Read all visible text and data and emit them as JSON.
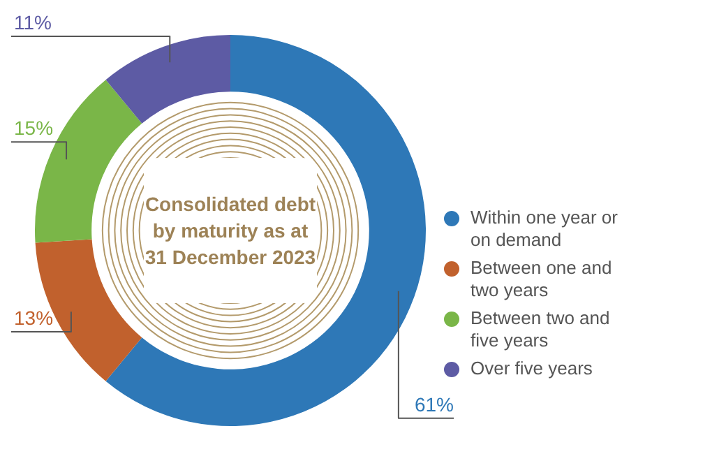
{
  "chart_data": {
    "type": "donut",
    "title": "Consolidated debt by maturity as at 31 December 2023",
    "categories": [
      "Within one year or on demand",
      "Between one and two years",
      "Between two and five years",
      "Over five years"
    ],
    "values": [
      61,
      13,
      15,
      11
    ],
    "colors": [
      "#2e78b7",
      "#c1612d",
      "#7ab648",
      "#5d5ba4"
    ],
    "value_labels": [
      "61%",
      "13%",
      "15%",
      "11%"
    ],
    "legend": "right"
  }
}
